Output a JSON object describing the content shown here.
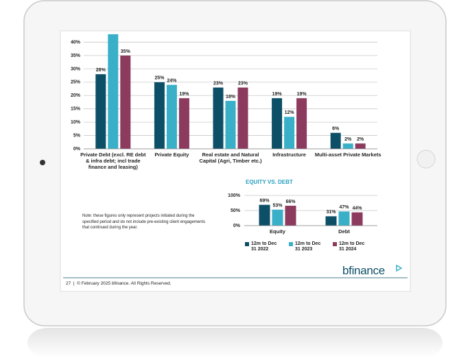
{
  "chart_data": [
    {
      "type": "bar",
      "categories": [
        "Private Debt (excl. RE debt & infra debt; incl trade finance and leasing)",
        "Private Equity",
        "Real estate and Natural Capital (Agri, Timber etc.)",
        "Infrastructure",
        "Multi-asset Private Markets"
      ],
      "series": [
        {
          "color": "#0d4f66",
          "values": [
            28,
            25,
            23,
            19,
            6
          ],
          "value_labels": [
            "28%",
            "25%",
            "23%",
            "19%",
            "6%"
          ]
        },
        {
          "color": "#3ab0c8",
          "values": [
            43,
            24,
            18,
            12,
            2
          ],
          "value_labels": [
            null,
            "24%",
            "18%",
            "12%",
            "2%"
          ]
        },
        {
          "color": "#8c3a5e",
          "values": [
            35,
            19,
            23,
            19,
            2
          ],
          "value_labels": [
            "35%",
            "19%",
            "23%",
            "19%",
            "2%"
          ]
        }
      ],
      "ylim": [
        0,
        44
      ],
      "yticks": [
        {
          "value": 0,
          "label": "0%"
        },
        {
          "value": 5,
          "label": "5%"
        },
        {
          "value": 10,
          "label": "10%"
        },
        {
          "value": 15,
          "label": "15%"
        },
        {
          "value": 20,
          "label": "20%"
        },
        {
          "value": 25,
          "label": "25%"
        },
        {
          "value": 30,
          "label": "30%"
        },
        {
          "value": 35,
          "label": "35%"
        },
        {
          "value": 40,
          "label": "40%"
        }
      ],
      "grid": true
    },
    {
      "type": "bar",
      "title": "EQUITY VS. DEBT",
      "categories": [
        "Equity",
        "Debt"
      ],
      "series": [
        {
          "name": "12m to Dec 31 2022",
          "color": "#0d4f66",
          "values": [
            69,
            31
          ],
          "value_labels": [
            "69%",
            "31%"
          ]
        },
        {
          "name": "12m to Dec 31 2023",
          "color": "#3ab0c8",
          "values": [
            53,
            47
          ],
          "value_labels": [
            "53%",
            "47%"
          ]
        },
        {
          "name": "12m to Dec 31 2024",
          "color": "#8c3a5e",
          "values": [
            66,
            44
          ],
          "value_labels": [
            "66%",
            "44%"
          ]
        }
      ],
      "ylim": [
        0,
        100
      ],
      "yticks": [
        {
          "value": 0,
          "label": "0%"
        },
        {
          "value": 50,
          "label": "50%"
        },
        {
          "value": 100,
          "label": "100%"
        }
      ],
      "grid": true,
      "legend": "bottom"
    }
  ],
  "note": "Note: these figures only represent projects initiated during the specified period and do not include pre-existing client engagements that continued during the year.",
  "footer": {
    "page": "27",
    "text": "© February 2025 bfinance. All Rights Reserved."
  },
  "logo": "bfinance"
}
